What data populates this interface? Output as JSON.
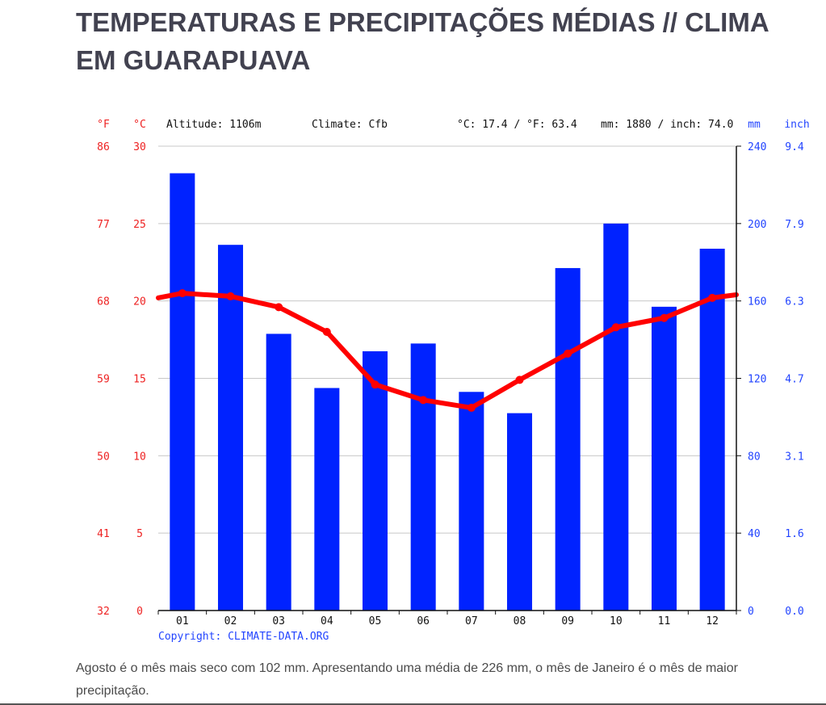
{
  "page": {
    "title": "TEMPERATURAS E PRECIPITAÇÕES MÉDIAS // CLIMA EM GUARAPUAVA",
    "caption": "Agosto é o mês mais seco com 102 mm. Apresentando uma média de 226 mm, o mês de Janeiro é o mês de maior precipitação."
  },
  "colors": {
    "temperature": "#ff0000",
    "precipitation": "#0022ff",
    "axis_blue_text": "#2244ff",
    "axis_red_text": "#ee2222",
    "grid": "#c8c8c8"
  },
  "chart_data": {
    "type": "bar",
    "combo": "bar + line",
    "header": {
      "f_unit": "°F",
      "c_unit": "°C",
      "altitude": "Altitude: 1106m",
      "climate": "Climate: Cfb",
      "temp_avg": "°C: 17.4 / °F: 63.4",
      "precip_total": "mm: 1880 / inch: 74.0",
      "mm_unit": "mm",
      "inch_unit": "inch"
    },
    "categories": [
      "01",
      "02",
      "03",
      "04",
      "05",
      "06",
      "07",
      "08",
      "09",
      "10",
      "11",
      "12"
    ],
    "series": [
      {
        "name": "mm",
        "kind": "bar",
        "axis": "right",
        "values": [
          226,
          189,
          143,
          115,
          134,
          138,
          113,
          102,
          177,
          200,
          157,
          187
        ]
      },
      {
        "name": "°C",
        "kind": "line",
        "axis": "left",
        "values": [
          20.5,
          20.3,
          19.6,
          18.0,
          14.6,
          13.6,
          13.1,
          14.9,
          16.6,
          18.3,
          18.9,
          20.2
        ]
      }
    ],
    "line_edge_values": {
      "start": 20.2,
      "end": 20.4
    },
    "left_axis_celsius": {
      "ticks": [
        0,
        5,
        10,
        15,
        20,
        25,
        30
      ],
      "ylim": [
        0,
        30
      ]
    },
    "left_axis_fahrenheit": {
      "ticks": [
        "32",
        "41",
        "50",
        "59",
        "68",
        "77",
        "86"
      ]
    },
    "right_axis_mm": {
      "ticks": [
        0,
        40,
        80,
        120,
        160,
        200,
        240
      ],
      "ylim": [
        0,
        240
      ]
    },
    "right_axis_inch": {
      "ticks": [
        "0.0",
        "1.6",
        "3.1",
        "4.7",
        "6.3",
        "7.9",
        "9.4"
      ]
    },
    "grid": true,
    "copyright": "Copyright: CLIMATE-DATA.ORG"
  }
}
